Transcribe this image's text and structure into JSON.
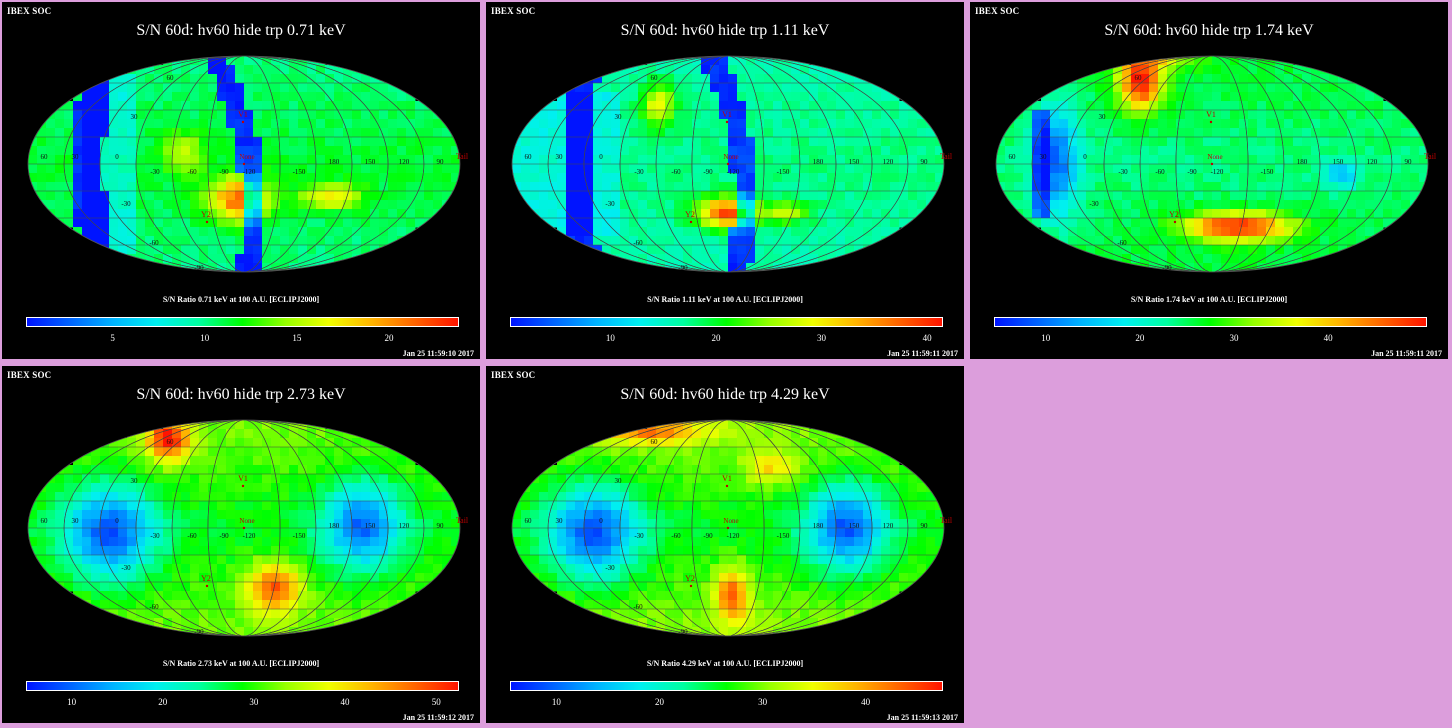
{
  "header_label": "IBEX SOC",
  "background_color": "#dc9edc",
  "colormap": [
    "#0014ff",
    "#0064ff",
    "#00b4ff",
    "#00f0f0",
    "#00ffa0",
    "#00ff00",
    "#96ff00",
    "#f0ff00",
    "#ffb400",
    "#ff6400",
    "#ff1400"
  ],
  "map_labels": {
    "lat_north": "60",
    "lat_n30": "30",
    "lat_s30": "-30",
    "lat_south": "-60",
    "lat_pole_s": "-90",
    "lon": [
      "60",
      "30",
      "0",
      "-30",
      "-60",
      "-90",
      "-120",
      "-150",
      "180",
      "150",
      "120",
      "90"
    ],
    "v1": "V1",
    "v2": "Y2",
    "none": "None",
    "tail": "Tail"
  },
  "chart_data": [
    {
      "type": "heatmap",
      "title": "S/N  60d: hv60 hide trp 0.71 keV",
      "colorbar_title": "S/N Ratio 0.71 keV at 100 A.U. [ECLIPJ2000]",
      "ticks": [
        "5",
        "10",
        "15",
        "20"
      ],
      "tick_values": [
        5,
        10,
        15,
        20
      ],
      "range": [
        0.3,
        23.8
      ],
      "timestamp": "Jan 25 11:59:10 2017",
      "profile": "low"
    },
    {
      "type": "heatmap",
      "title": "S/N  60d: hv60 hide trp 1.11 keV",
      "colorbar_title": "S/N Ratio 1.11 keV at 100 A.U. [ECLIPJ2000]",
      "ticks": [
        "10",
        "20",
        "30",
        "40"
      ],
      "tick_values": [
        10,
        20,
        30,
        40
      ],
      "range": [
        0.5,
        41.5
      ],
      "timestamp": "Jan 25 11:59:11 2017",
      "profile": "low"
    },
    {
      "type": "heatmap",
      "title": "S/N  60d: hv60 hide trp 1.74 keV",
      "colorbar_title": "S/N Ratio 1.74 keV at 100 A.U. [ECLIPJ2000]",
      "ticks": [
        "10",
        "20",
        "30",
        "40"
      ],
      "tick_values": [
        10,
        20,
        30,
        40
      ],
      "range": [
        4.5,
        50.5
      ],
      "timestamp": "Jan 25 11:59:11 2017",
      "profile": "mid"
    },
    {
      "type": "heatmap",
      "title": "S/N  60d: hv60 hide trp 2.73 keV",
      "colorbar_title": "S/N Ratio 2.73 keV at 100 A.U. [ECLIPJ2000]",
      "ticks": [
        "10",
        "20",
        "30",
        "40",
        "50"
      ],
      "tick_values": [
        10,
        20,
        30,
        40,
        50
      ],
      "range": [
        5,
        52.5
      ],
      "timestamp": "Jan 25 11:59:12 2017",
      "profile": "high"
    },
    {
      "type": "heatmap",
      "title": "S/N  60d: hv60 hide trp 4.29 keV",
      "colorbar_title": "S/N Ratio 4.29 keV at 100 A.U. [ECLIPJ2000]",
      "ticks": [
        "10",
        "20",
        "30",
        "40"
      ],
      "tick_values": [
        10,
        20,
        30,
        40
      ],
      "range": [
        5.5,
        47.5
      ],
      "timestamp": "Jan 25 11:59:13 2017",
      "profile": "high"
    }
  ]
}
